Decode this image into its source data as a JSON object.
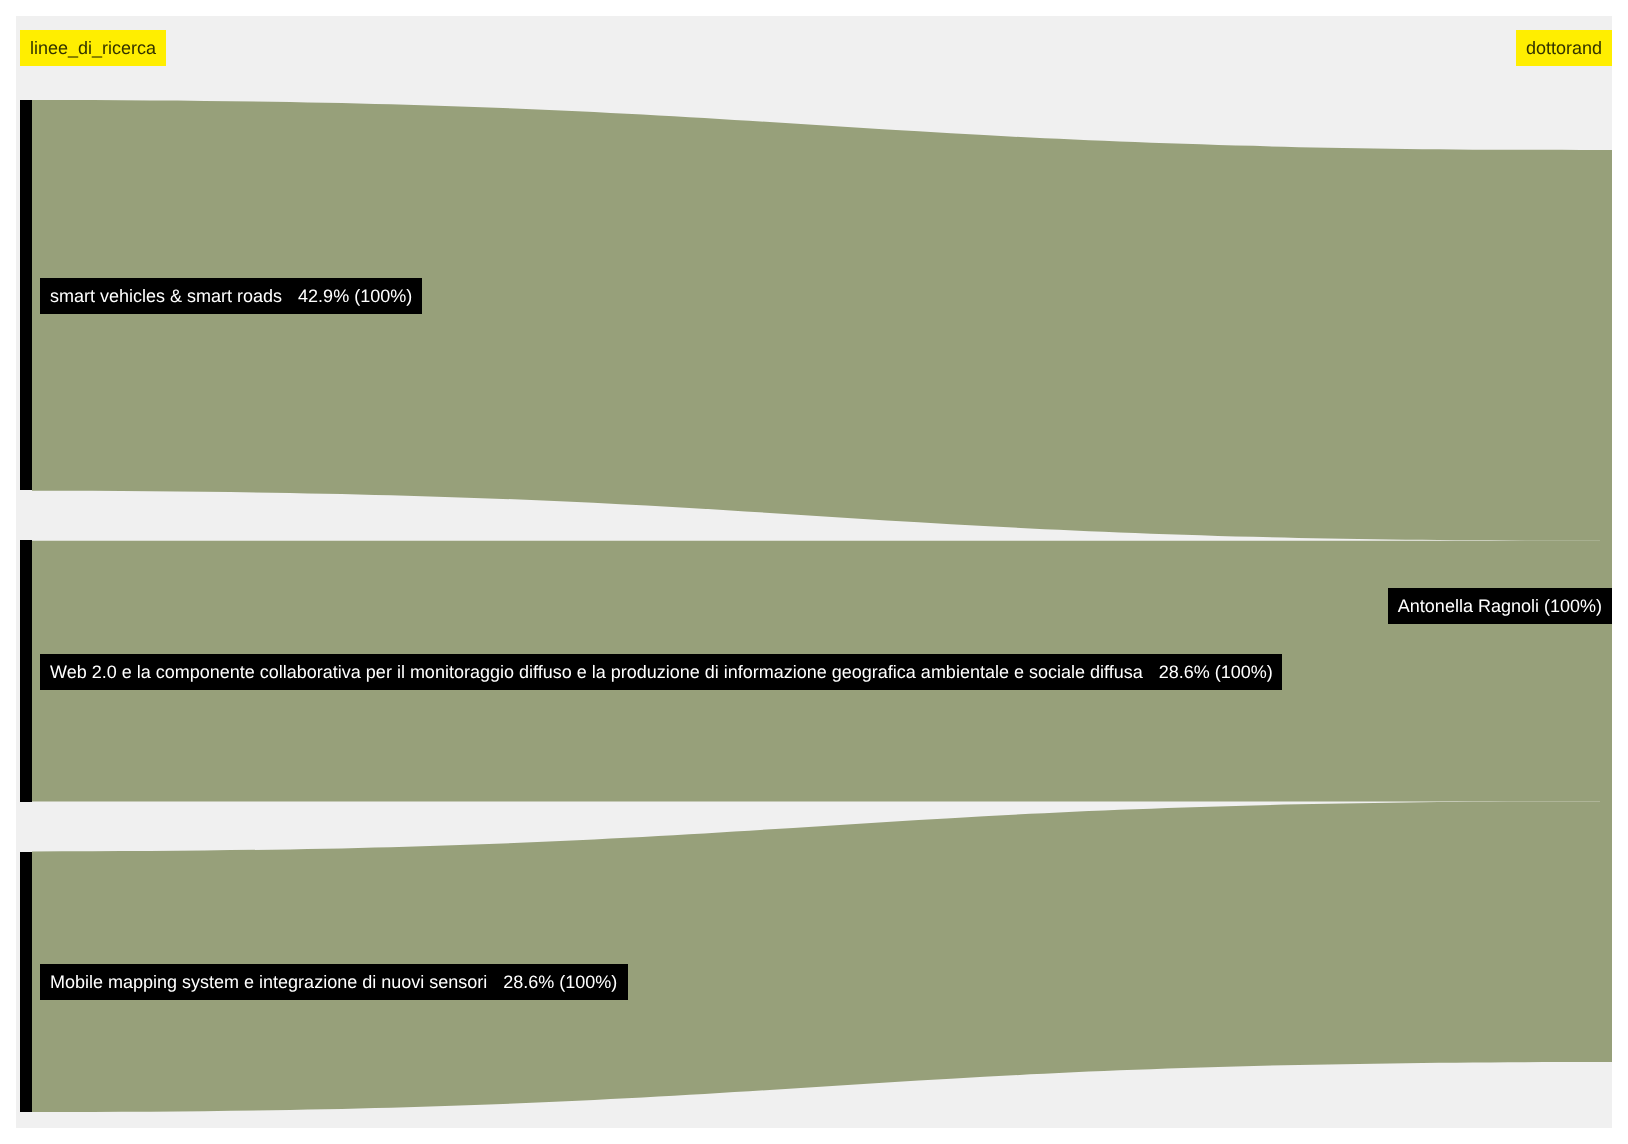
{
  "chart_data": {
    "type": "other",
    "categories": [
      "smart vehicles & smart roads",
      "Web 2.0 e la componente collaborativa per il monitoraggio diffuso e la produzione di informazione geografica ambientale e sociale diffusa",
      "Mobile mapping system e integrazione di nuovi sensori"
    ],
    "values": [
      42.9,
      28.6,
      28.6
    ],
    "value_labels": [
      "42.9% (100%)",
      "28.6% (100%)",
      "28.6% (100%)"
    ],
    "annotations": [
      "linee_di_ricerca",
      "dottorand",
      "Antonella Ragnoli (100%)"
    ]
  }
}
